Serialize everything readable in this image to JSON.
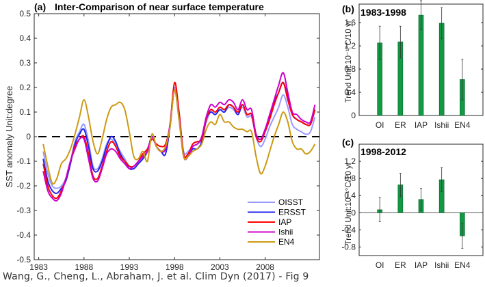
{
  "chart_data": [
    {
      "type": "line",
      "panel_label": "(a)",
      "title": "Inter-Comparison of near surface temperature",
      "xlabel": "",
      "ylabel": "SST anomaly Unit:degree",
      "xlim": [
        1982.5,
        2014
      ],
      "ylim": [
        -0.5,
        0.5
      ],
      "xticks": [
        1983,
        1988,
        1993,
        1998,
        2003,
        2008
      ],
      "yticks": [
        0.5,
        0.4,
        0.3,
        0.2,
        0.1,
        0,
        -0.1,
        -0.2,
        -0.3,
        -0.4,
        -0.5
      ],
      "ytick_labels": [
        "0.5",
        "0.4",
        "0.3",
        "0.2",
        "0.1",
        "0",
        "-0.1",
        "-0.2",
        "-0.3",
        "-0.4",
        "-0.5"
      ],
      "reference_line": {
        "y": 0,
        "style": "dashed",
        "color": "#000000"
      },
      "legend_position": "bottom-right",
      "x": [
        1983.5,
        1984.0,
        1984.5,
        1985.0,
        1985.5,
        1986.0,
        1986.5,
        1987.0,
        1987.5,
        1988.0,
        1988.5,
        1989.0,
        1989.5,
        1990.0,
        1990.5,
        1991.0,
        1991.5,
        1992.0,
        1992.5,
        1993.0,
        1993.5,
        1994.0,
        1994.5,
        1995.0,
        1995.5,
        1996.0,
        1996.5,
        1997.0,
        1997.5,
        1998.0,
        1998.5,
        1999.0,
        1999.5,
        2000.0,
        2000.5,
        2001.0,
        2001.5,
        2002.0,
        2002.5,
        2003.0,
        2003.5,
        2004.0,
        2004.5,
        2005.0,
        2005.5,
        2006.0,
        2006.5,
        2007.0,
        2007.5,
        2008.0,
        2008.5,
        2009.0,
        2009.5,
        2010.0,
        2010.5,
        2011.0,
        2011.5,
        2012.0,
        2012.5,
        2013.0,
        2013.5
      ],
      "series": [
        {
          "name": "OISST",
          "color": "#9999ff",
          "values": [
            -0.06,
            -0.15,
            -0.2,
            -0.21,
            -0.2,
            -0.17,
            -0.1,
            -0.02,
            0.02,
            0.05,
            -0.02,
            -0.12,
            -0.13,
            -0.09,
            -0.03,
            -0.01,
            -0.03,
            -0.06,
            -0.09,
            -0.12,
            -0.13,
            -0.11,
            -0.08,
            -0.05,
            0.0,
            -0.04,
            -0.06,
            -0.05,
            0.05,
            0.2,
            0.09,
            -0.06,
            -0.06,
            -0.04,
            -0.03,
            -0.01,
            0.06,
            0.1,
            0.09,
            0.11,
            0.1,
            0.12,
            0.11,
            0.09,
            0.12,
            0.08,
            0.08,
            0.0,
            -0.04,
            -0.01,
            0.04,
            0.08,
            0.12,
            0.17,
            0.12,
            0.05,
            0.03,
            0.02,
            0.01,
            0.02,
            0.08
          ]
        },
        {
          "name": "ERSST",
          "color": "#2222ee",
          "values": [
            -0.09,
            -0.18,
            -0.22,
            -0.23,
            -0.21,
            -0.18,
            -0.11,
            -0.03,
            0.01,
            0.03,
            -0.04,
            -0.13,
            -0.14,
            -0.1,
            -0.04,
            0.0,
            -0.02,
            -0.07,
            -0.1,
            -0.13,
            -0.13,
            -0.11,
            -0.09,
            -0.06,
            0.0,
            -0.04,
            -0.06,
            -0.07,
            0.04,
            0.19,
            0.07,
            -0.08,
            -0.08,
            -0.05,
            -0.05,
            -0.02,
            0.07,
            0.1,
            0.09,
            0.11,
            0.1,
            0.13,
            0.12,
            0.09,
            0.13,
            0.09,
            0.09,
            0.01,
            -0.01,
            0.03,
            0.08,
            0.14,
            0.18,
            0.22,
            0.16,
            0.09,
            0.07,
            0.06,
            0.05,
            0.05,
            0.11
          ]
        },
        {
          "name": "IAP",
          "color": "#ff0000",
          "values": [
            -0.11,
            -0.2,
            -0.24,
            -0.25,
            -0.22,
            -0.17,
            -0.1,
            -0.04,
            -0.01,
            0.0,
            -0.07,
            -0.16,
            -0.17,
            -0.12,
            -0.06,
            -0.02,
            -0.04,
            -0.08,
            -0.1,
            -0.12,
            -0.12,
            -0.1,
            -0.07,
            -0.05,
            -0.01,
            -0.03,
            -0.04,
            -0.03,
            0.05,
            0.22,
            0.1,
            -0.07,
            -0.07,
            -0.03,
            -0.02,
            -0.01,
            0.07,
            0.11,
            0.1,
            0.12,
            0.11,
            0.13,
            0.12,
            0.1,
            0.13,
            0.09,
            0.09,
            0.0,
            -0.02,
            0.02,
            0.07,
            0.13,
            0.18,
            0.22,
            0.15,
            0.09,
            0.07,
            0.06,
            0.05,
            0.05,
            0.11
          ]
        },
        {
          "name": "Ishii",
          "color": "#cc00cc",
          "values": [
            -0.14,
            -0.22,
            -0.25,
            -0.26,
            -0.23,
            -0.17,
            -0.1,
            -0.05,
            -0.01,
            -0.01,
            -0.09,
            -0.17,
            -0.18,
            -0.13,
            -0.07,
            -0.05,
            -0.06,
            -0.09,
            -0.11,
            -0.13,
            -0.12,
            -0.1,
            -0.08,
            -0.06,
            0.0,
            -0.04,
            -0.06,
            -0.05,
            0.05,
            0.19,
            0.08,
            -0.08,
            -0.08,
            -0.04,
            -0.03,
            0.0,
            0.08,
            0.13,
            0.12,
            0.14,
            0.13,
            0.15,
            0.14,
            0.11,
            0.15,
            0.11,
            0.11,
            0.01,
            -0.01,
            0.03,
            0.09,
            0.15,
            0.21,
            0.26,
            0.18,
            0.1,
            0.09,
            0.07,
            0.06,
            0.06,
            0.13
          ]
        },
        {
          "name": "EN4",
          "color": "#cc9911",
          "values": [
            -0.03,
            -0.12,
            -0.19,
            -0.17,
            -0.11,
            -0.09,
            -0.05,
            0.01,
            0.08,
            0.15,
            0.08,
            -0.02,
            -0.07,
            -0.01,
            0.07,
            0.12,
            0.13,
            0.14,
            0.11,
            0.02,
            -0.08,
            -0.09,
            -0.06,
            -0.1,
            0.01,
            -0.04,
            -0.06,
            -0.04,
            0.04,
            0.19,
            0.07,
            -0.08,
            -0.08,
            -0.06,
            -0.05,
            -0.03,
            0.03,
            0.06,
            0.05,
            0.09,
            0.06,
            0.06,
            0.04,
            0.03,
            0.03,
            0.02,
            0.02,
            -0.08,
            -0.15,
            -0.12,
            -0.06,
            0.0,
            0.05,
            0.1,
            0.06,
            -0.02,
            -0.05,
            -0.05,
            -0.07,
            -0.06,
            -0.03
          ]
        }
      ]
    },
    {
      "type": "bar",
      "panel_label": "(b)",
      "title": "1983-1998",
      "ylabel": "Trend Unit:10⁻¹°C/10 yr",
      "categories": [
        "OI",
        "ER",
        "IAP",
        "Ishii",
        "EN4"
      ],
      "values": [
        1.25,
        1.27,
        1.73,
        1.59,
        0.62
      ],
      "error_low": [
        0.96,
        0.99,
        1.48,
        1.32,
        0.27
      ],
      "error_high": [
        1.54,
        1.54,
        1.98,
        1.86,
        0.97
      ],
      "ylim": [
        0,
        1.92
      ],
      "yticks": [
        0,
        0.4,
        0.8,
        1.2,
        1.6
      ],
      "ytick_labels": [
        "0",
        "0.4",
        "0.8",
        "1.2",
        "1.6"
      ],
      "bar_color": "#119944"
    },
    {
      "type": "bar",
      "panel_label": "(c)",
      "title": "1998-2012",
      "ylabel": "Trend Unit:10⁻¹°C/10 yr",
      "categories": [
        "OI",
        "ER",
        "IAP",
        "Ishii",
        "EN4"
      ],
      "values": [
        0.07,
        0.65,
        0.31,
        0.77,
        -0.54
      ],
      "error_low": [
        -0.21,
        0.37,
        0.06,
        0.49,
        -0.83
      ],
      "error_high": [
        0.36,
        0.92,
        0.57,
        1.05,
        -0.24
      ],
      "ylim": [
        -1.0,
        1.6
      ],
      "yticks": [
        -0.8,
        -0.4,
        0,
        0.4,
        0.8,
        1.2
      ],
      "ytick_labels": [
        "-0.8",
        "-0.4",
        "0",
        "0.4",
        "0.8",
        "1.2"
      ],
      "bar_color": "#119944"
    }
  ],
  "caption": "Wang, G., Cheng, L., Abraham, J. et al. Clim Dyn (2017) - Fig 9"
}
